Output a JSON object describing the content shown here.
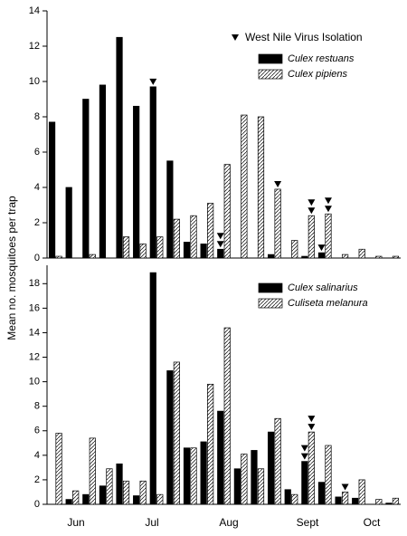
{
  "chart_data": [
    {
      "type": "bar",
      "legend_title": "West Nile Virus Isolation",
      "ylim": [
        0,
        14
      ],
      "yticks": [
        0,
        2,
        4,
        6,
        8,
        10,
        12,
        14
      ],
      "series": [
        {
          "name": "Culex restuans",
          "color": "#000000",
          "hatch": false,
          "values": [
            7.7,
            4.0,
            9.0,
            9.8,
            12.5,
            8.6,
            9.7,
            5.5,
            0.9,
            0.8,
            0.5,
            0,
            0,
            0.2,
            0,
            0.1,
            0.3,
            0,
            0,
            0,
            0
          ]
        },
        {
          "name": "Culex pipiens",
          "color": "#ffffff",
          "hatch": true,
          "values": [
            0.1,
            0,
            0.2,
            0,
            1.2,
            0.8,
            1.2,
            2.2,
            2.4,
            3.1,
            5.3,
            8.1,
            8.0,
            3.9,
            1.0,
            2.4,
            2.5,
            0.2,
            0.5,
            0.1,
            0.1
          ]
        }
      ],
      "wnv_isolations": [
        {
          "series": 0,
          "index": 6,
          "count": 1
        },
        {
          "series": 0,
          "index": 10,
          "count": 2
        },
        {
          "series": 1,
          "index": 13,
          "count": 1
        },
        {
          "series": 1,
          "index": 15,
          "count": 2
        },
        {
          "series": 1,
          "index": 16,
          "count": 2
        },
        {
          "series": 0,
          "index": 16,
          "count": 1
        }
      ]
    },
    {
      "type": "bar",
      "y_label": "Mean no. mosquitoes per trap",
      "x_labels": [
        "Jun",
        "Jul",
        "Aug",
        "Sept",
        "Oct"
      ],
      "ylim": [
        0,
        19.5
      ],
      "yticks": [
        0,
        2,
        4,
        6,
        8,
        10,
        12,
        14,
        16,
        18
      ],
      "series": [
        {
          "name": "Culex salinarius",
          "color": "#000000",
          "hatch": false,
          "values": [
            0,
            0.4,
            0.8,
            1.5,
            3.3,
            0.7,
            18.9,
            10.9,
            4.6,
            5.1,
            7.6,
            2.9,
            4.4,
            5.9,
            1.2,
            3.5,
            1.8,
            0.6,
            0.5,
            0,
            0.1
          ]
        },
        {
          "name": "Culiseta melanura",
          "color": "#ffffff",
          "hatch": true,
          "values": [
            5.8,
            1.1,
            5.4,
            2.9,
            1.9,
            1.9,
            0.8,
            11.6,
            4.6,
            9.8,
            14.4,
            4.1,
            2.9,
            7.0,
            0.8,
            5.9,
            4.8,
            1.0,
            2.0,
            0.4,
            0.5
          ]
        }
      ],
      "wnv_isolations": [
        {
          "series": 0,
          "index": 15,
          "count": 2
        },
        {
          "series": 1,
          "index": 15,
          "count": 2
        },
        {
          "series": 1,
          "index": 17,
          "count": 1
        }
      ]
    }
  ]
}
